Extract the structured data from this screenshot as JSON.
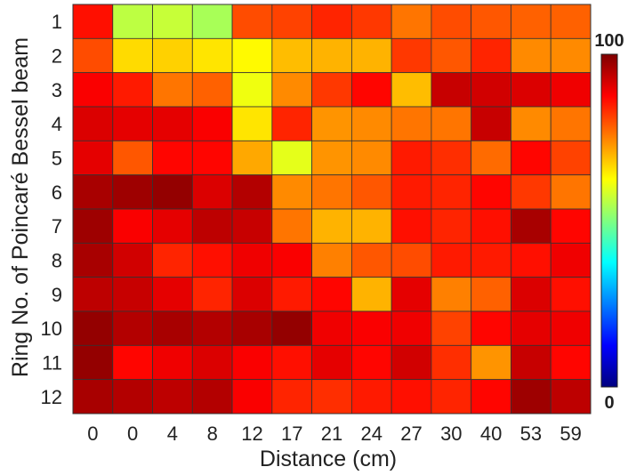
{
  "chart_data": {
    "type": "heatmap",
    "title": "",
    "xlabel": "Distance (cm)",
    "ylabel": "Ring No. of Poincaré Bessel beam",
    "x_categories": [
      "0",
      "0",
      "4",
      "8",
      "12",
      "17",
      "21",
      "24",
      "27",
      "30",
      "40",
      "53",
      "59"
    ],
    "y_categories": [
      "1",
      "2",
      "3",
      "4",
      "5",
      "6",
      "7",
      "8",
      "9",
      "10",
      "11",
      "12"
    ],
    "colorbar": {
      "min": 0,
      "max": 100,
      "min_label": "0",
      "max_label": "100",
      "colormap": "jet-like (dark blue to dark red)",
      "position": "right"
    },
    "grid": true,
    "values": [
      [
        86,
        56,
        57,
        54,
        80,
        81,
        84,
        82,
        76,
        80,
        79,
        78,
        78
      ],
      [
        80,
        66,
        67,
        65,
        63,
        69,
        70,
        70,
        82,
        79,
        84,
        74,
        74
      ],
      [
        88,
        85,
        76,
        78,
        61,
        74,
        82,
        87,
        69,
        93,
        92,
        91,
        89
      ],
      [
        91,
        90,
        90,
        88,
        65,
        84,
        73,
        74,
        76,
        76,
        93,
        74,
        76
      ],
      [
        90,
        79,
        87,
        87,
        71,
        60,
        73,
        74,
        85,
        83,
        77,
        87,
        81
      ],
      [
        96,
        97,
        98,
        91,
        95,
        74,
        76,
        79,
        85,
        84,
        87,
        82,
        76
      ],
      [
        97,
        88,
        90,
        94,
        93,
        76,
        70,
        70,
        86,
        84,
        86,
        96,
        87
      ],
      [
        96,
        92,
        84,
        86,
        89,
        88,
        75,
        79,
        80,
        85,
        85,
        86,
        89
      ],
      [
        94,
        93,
        90,
        84,
        91,
        85,
        87,
        70,
        90,
        75,
        78,
        91,
        86
      ],
      [
        98,
        95,
        96,
        95,
        96,
        98,
        89,
        88,
        89,
        81,
        87,
        90,
        89
      ],
      [
        98,
        87,
        89,
        91,
        88,
        86,
        90,
        87,
        92,
        83,
        73,
        93,
        87
      ],
      [
        96,
        95,
        94,
        95,
        88,
        84,
        83,
        85,
        86,
        84,
        87,
        97,
        94
      ]
    ]
  }
}
